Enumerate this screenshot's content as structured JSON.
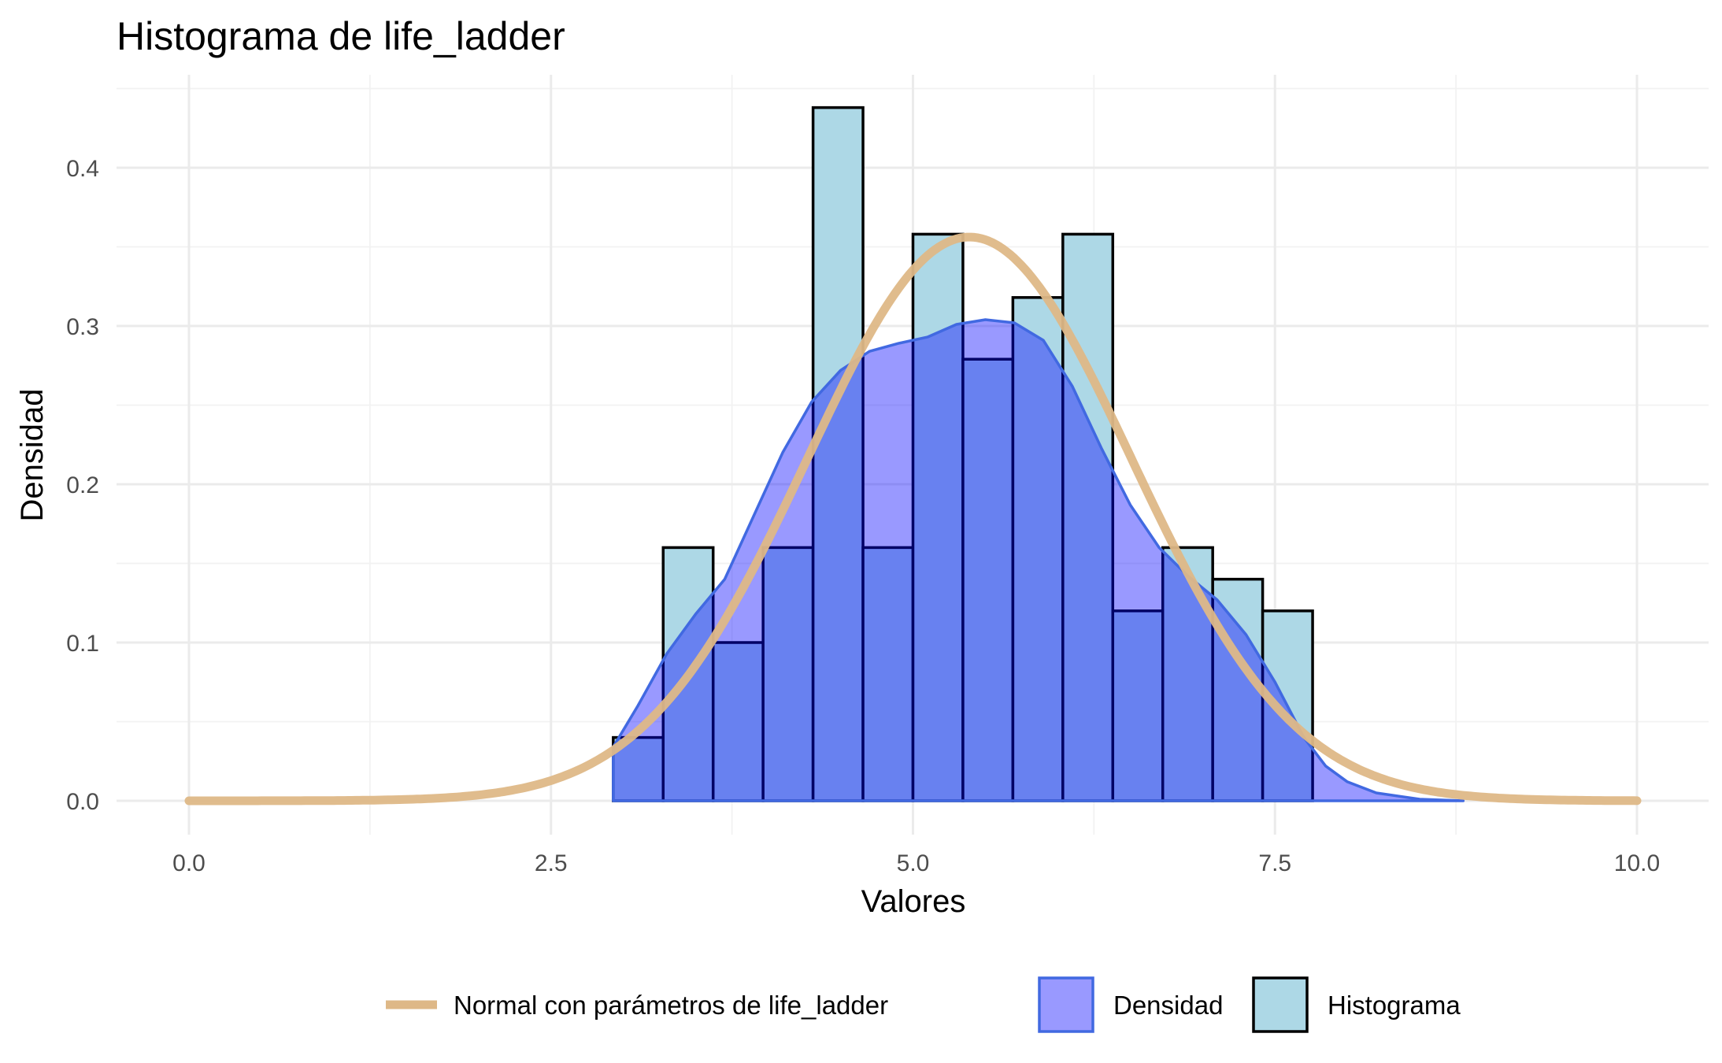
{
  "chart_data": {
    "type": "bar",
    "title": "Histograma de life_ladder",
    "xlabel": "Valores",
    "ylabel": "Densidad",
    "xlim": [
      0,
      10
    ],
    "ylim": [
      0,
      0.45
    ],
    "x_ticks": [
      "0.0",
      "2.5",
      "5.0",
      "7.5",
      "10.0"
    ],
    "y_ticks": [
      "0.0",
      "0.1",
      "0.2",
      "0.3",
      "0.4"
    ],
    "grid": true,
    "legend_position": "bottom",
    "histogram": {
      "name": "Histograma",
      "fill": "#add8e6",
      "stroke": "#000000",
      "bin_width": 0.345,
      "bins": [
        {
          "start": 2.93,
          "value": 0.04
        },
        {
          "start": 3.275,
          "value": 0.16
        },
        {
          "start": 3.62,
          "value": 0.1
        },
        {
          "start": 3.965,
          "value": 0.16
        },
        {
          "start": 4.31,
          "value": 0.438
        },
        {
          "start": 4.655,
          "value": 0.16
        },
        {
          "start": 5.0,
          "value": 0.358
        },
        {
          "start": 5.345,
          "value": 0.279
        },
        {
          "start": 5.69,
          "value": 0.318
        },
        {
          "start": 6.035,
          "value": 0.358
        },
        {
          "start": 6.38,
          "value": 0.12
        },
        {
          "start": 6.725,
          "value": 0.16
        },
        {
          "start": 7.07,
          "value": 0.14
        },
        {
          "start": 7.415,
          "value": 0.12
        }
      ]
    },
    "density": {
      "name": "Densidad",
      "fill": "#0000ff",
      "fill_opacity": 0.4,
      "stroke": "#4169e1",
      "x": [
        2.93,
        3.1,
        3.3,
        3.5,
        3.7,
        3.9,
        4.1,
        4.3,
        4.5,
        4.7,
        4.9,
        5.1,
        5.3,
        5.5,
        5.7,
        5.9,
        6.1,
        6.3,
        6.5,
        6.7,
        6.9,
        7.1,
        7.3,
        7.5,
        7.7,
        7.85,
        8.0,
        8.2,
        8.5,
        8.8
      ],
      "y": [
        0.034,
        0.06,
        0.093,
        0.118,
        0.14,
        0.18,
        0.22,
        0.252,
        0.272,
        0.284,
        0.289,
        0.293,
        0.301,
        0.304,
        0.302,
        0.291,
        0.262,
        0.223,
        0.187,
        0.16,
        0.142,
        0.127,
        0.105,
        0.075,
        0.04,
        0.022,
        0.012,
        0.005,
        0.001,
        0.0
      ]
    },
    "normal": {
      "name": "Normal con parámetros de life_ladder",
      "color": "#deb887",
      "mean": 5.39,
      "sd": 1.12,
      "x_range": [
        0,
        10
      ]
    },
    "legend": [
      {
        "label": "Normal con parámetros de life_ladder",
        "kind": "line",
        "color": "#deb887"
      },
      {
        "label": "Densidad",
        "kind": "area",
        "fill": "#9999ff",
        "stroke": "#4169e1"
      },
      {
        "label": "Histograma",
        "kind": "box",
        "fill": "#add8e6",
        "stroke": "#000000"
      }
    ]
  }
}
